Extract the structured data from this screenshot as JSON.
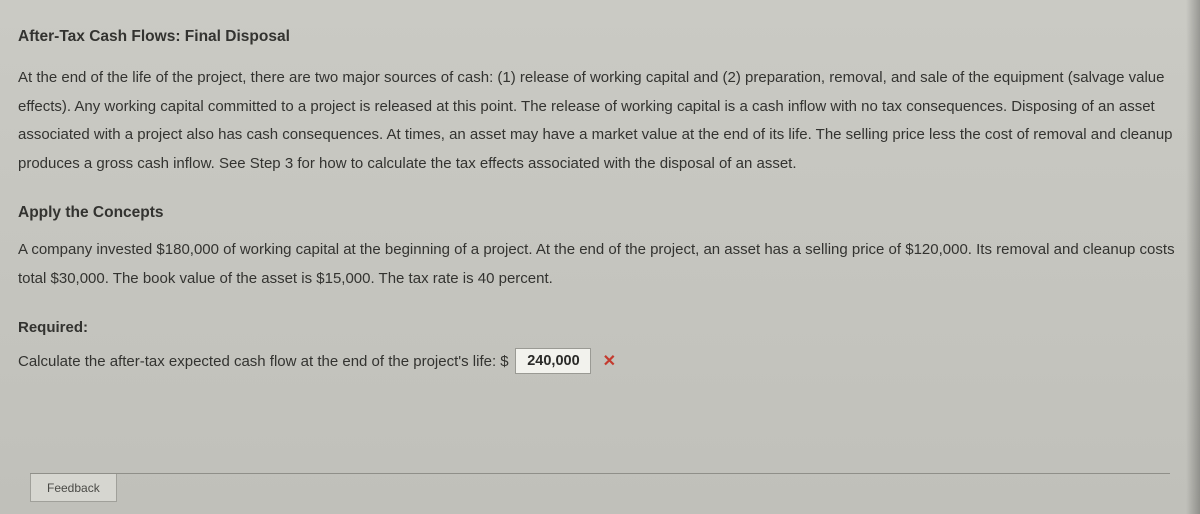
{
  "section1": {
    "title": "After-Tax Cash Flows: Final Disposal",
    "body": "At the end of the life of the project, there are two major sources of cash: (1) release of working capital and (2) preparation, removal, and sale of the equipment (salvage value effects). Any working capital committed to a project is released at this point. The release of working capital is a cash inflow with no tax consequences. Disposing of an asset associated with a project also has cash consequences. At times, an asset may have a market value at the end of its life. The selling price less the cost of removal and cleanup produces a gross cash inflow. See Step 3 for how to calculate the tax effects associated with the disposal of an asset."
  },
  "section2": {
    "title": "Apply the Concepts",
    "body": "A company invested $180,000 of working capital at the beginning of a project. At the end of the project, an asset has a selling price of $120,000. Its removal and cleanup costs total $30,000. The book value of the asset is $15,000. The tax rate is 40 percent."
  },
  "required": {
    "label": "Required:",
    "prompt_prefix": "Calculate the after-tax expected cash flow at the end of the project's life: $",
    "answer_value": "240,000",
    "mark": "✕"
  },
  "feedback": {
    "label": "Feedback"
  }
}
